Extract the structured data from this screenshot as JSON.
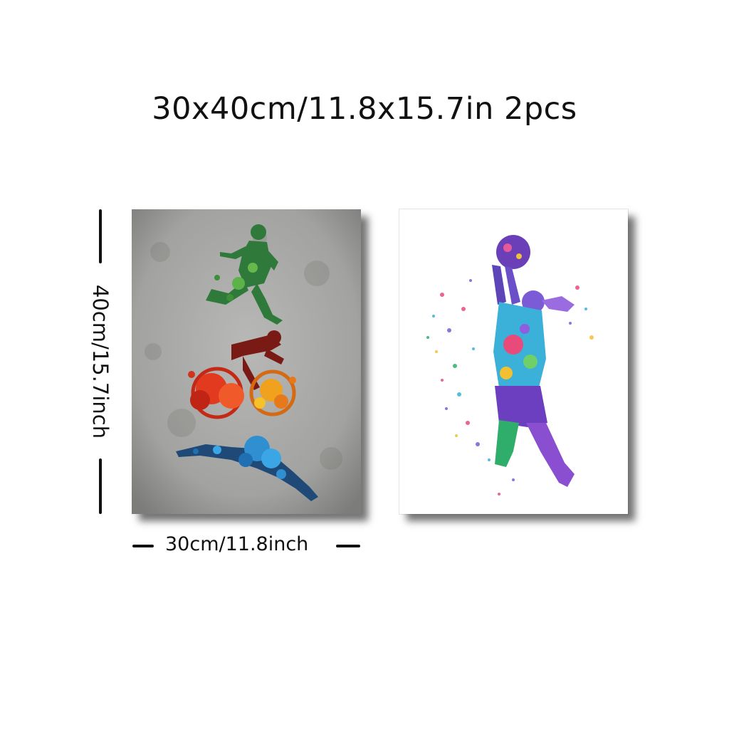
{
  "headline": "30x40cm/11.8x15.7in 2pcs",
  "dimensions": {
    "height_label": "40cm/15.7inch",
    "width_label": "30cm/11.8inch"
  },
  "posters": [
    {
      "subject": "triathlon silhouettes: runner, cyclist, swimmer",
      "background": "#a9a9a7"
    },
    {
      "subject": "basketball player shooting",
      "background": "#ffffff"
    }
  ],
  "colors": {
    "runner": "#2f7a3a",
    "cyclist": "#d9351c",
    "swimmer": "#2f8fd0",
    "player": "#7b5bd6"
  }
}
